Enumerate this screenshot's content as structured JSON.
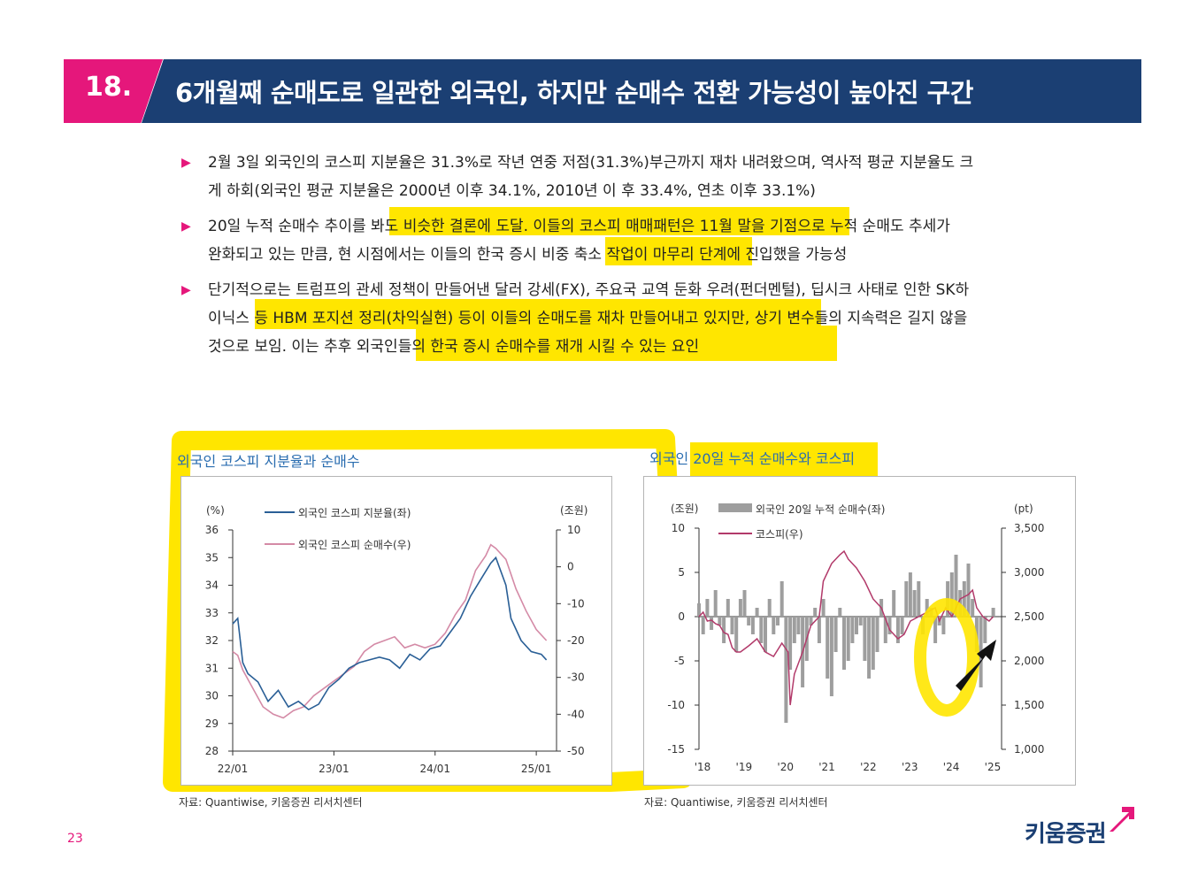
{
  "header": {
    "number": "18.",
    "title": "6개월째 순매도로 일관한 외국인, 하지만 순매수 전환 가능성이 높아진 구간"
  },
  "bullets": [
    {
      "line1": "2월 3일 외국인의 코스피 지분율은 31.3%로 작년 연중 저점(31.3%)부근까지 재차 내려왔으며, 역사적 평균 지분율도 크",
      "line2": "게 하회(외국인 평균 지분율은 2000년 이후 34.1%, 2010년 이 후 33.4%, 연초 이후 33.1%)"
    },
    {
      "line1": "20일 누적 순매수 추이를 봐도 비슷한 결론에 도달. 이들의 코스피 매매패턴은 11월 말을 기점으로 누적 순매도 추세가",
      "line2": "완화되고 있는 만큼, 현 시점에서는 이들의 한국 증시 비중 축소 작업이 마무리 단계에 진입했을 가능성"
    },
    {
      "line1": "단기적으로는 트럼프의 관세 정책이 만들어낸 달러 강세(FX), 주요국 교역 둔화 우려(펀더멘털), 딥시크 사태로 인한 SK하",
      "line2": "이닉스 등 HBM 포지션 정리(차익실현) 등이 이들의 순매도를 재차 만들어내고 있지만, 상기 변수들의 지속력은 길지 않을",
      "line3": "것으로 보임. 이는 추후 외국인들의 한국 증시 순매수를 재개 시킬 수 있는 요인"
    }
  ],
  "page_number": "23",
  "logo_text": "키움증권",
  "colors": {
    "accent": "#e5177b",
    "navy": "#1b3f73",
    "highlight": "#ffe600",
    "series_blue": "#2a5f96",
    "series_pink": "#d48aa6",
    "bar_gray": "#9e9e9e",
    "kospi_red": "#b23a6a"
  },
  "chart_data": [
    {
      "type": "line",
      "title": "외국인 코스피 지분율과 순매수",
      "source": "자료: Quantiwise, 키움증권 리서치센터",
      "left_unit": "(%)",
      "right_unit": "(조원)",
      "left_ticks": [
        "28",
        "29",
        "30",
        "31",
        "32",
        "33",
        "34",
        "35",
        "36"
      ],
      "right_ticks": [
        "-50",
        "-40",
        "-30",
        "-20",
        "-10",
        "0",
        "10"
      ],
      "x_ticks": [
        "22/01",
        "23/01",
        "24/01",
        "25/01"
      ],
      "ylim_left": [
        28,
        36
      ],
      "ylim_right": [
        -50,
        10
      ],
      "series": [
        {
          "name": "외국인 코스피 지분율(좌)",
          "axis": "left",
          "x": [
            2022.0,
            2022.05,
            2022.1,
            2022.15,
            2022.25,
            2022.35,
            2022.45,
            2022.55,
            2022.65,
            2022.75,
            2022.85,
            2022.95,
            2023.05,
            2023.15,
            2023.25,
            2023.35,
            2023.45,
            2023.55,
            2023.65,
            2023.75,
            2023.85,
            2023.95,
            2024.05,
            2024.15,
            2024.25,
            2024.35,
            2024.45,
            2024.55,
            2024.6,
            2024.7,
            2024.75,
            2024.85,
            2024.95,
            2025.05,
            2025.1
          ],
          "values": [
            32.6,
            32.8,
            31.2,
            30.8,
            30.5,
            29.8,
            30.2,
            29.6,
            29.8,
            29.5,
            29.7,
            30.3,
            30.6,
            31.0,
            31.2,
            31.3,
            31.4,
            31.3,
            31.0,
            31.5,
            31.3,
            31.7,
            31.8,
            32.3,
            32.8,
            33.6,
            34.2,
            34.8,
            35.0,
            34.0,
            32.8,
            32.0,
            31.6,
            31.5,
            31.3
          ]
        },
        {
          "name": "외국인 코스피 순매수(우)",
          "axis": "right",
          "x": [
            2022.0,
            2022.05,
            2022.1,
            2022.2,
            2022.3,
            2022.4,
            2022.5,
            2022.6,
            2022.7,
            2022.8,
            2022.9,
            2023.0,
            2023.1,
            2023.2,
            2023.3,
            2023.4,
            2023.5,
            2023.6,
            2023.7,
            2023.8,
            2023.9,
            2024.0,
            2024.1,
            2024.2,
            2024.3,
            2024.4,
            2024.5,
            2024.55,
            2024.6,
            2024.7,
            2024.8,
            2024.9,
            2025.0,
            2025.1
          ],
          "values": [
            -23,
            -24,
            -28,
            -33,
            -38,
            -40,
            -41,
            -39,
            -38,
            -35,
            -33,
            -31,
            -29,
            -27,
            -23,
            -21,
            -20,
            -19,
            -22,
            -21,
            -22,
            -21,
            -18,
            -13,
            -9,
            -1,
            3,
            6,
            5,
            2,
            -6,
            -12,
            -17,
            -20
          ]
        }
      ]
    },
    {
      "type": "bar",
      "title": "외국인 20일 누적 순매수와 코스피",
      "source": "자료: Quantiwise, 키움증권 리서치센터",
      "left_unit": "(조원)",
      "right_unit": "(pt)",
      "left_ticks": [
        "-15",
        "-10",
        "-5",
        "0",
        "5",
        "10"
      ],
      "right_ticks": [
        "1,000",
        "1,500",
        "2,000",
        "2,500",
        "3,000",
        "3,500"
      ],
      "x_ticks": [
        "'18",
        "'19",
        "'20",
        "'21",
        "'22",
        "'23",
        "'24",
        "'25"
      ],
      "ylim_left": [
        -15,
        10
      ],
      "ylim_right": [
        1000,
        3500
      ],
      "series": [
        {
          "name": "외국인 20일 누적 순매수(좌)",
          "axis": "left",
          "style": "bar",
          "x": [
            2018.0,
            2018.1,
            2018.2,
            2018.3,
            2018.4,
            2018.5,
            2018.6,
            2018.7,
            2018.8,
            2018.9,
            2019.0,
            2019.1,
            2019.2,
            2019.3,
            2019.4,
            2019.5,
            2019.6,
            2019.7,
            2019.8,
            2019.9,
            2020.0,
            2020.1,
            2020.2,
            2020.3,
            2020.4,
            2020.5,
            2020.6,
            2020.7,
            2020.8,
            2020.9,
            2021.0,
            2021.1,
            2021.2,
            2021.3,
            2021.4,
            2021.5,
            2021.6,
            2021.7,
            2021.8,
            2021.9,
            2022.0,
            2022.1,
            2022.2,
            2022.3,
            2022.4,
            2022.5,
            2022.6,
            2022.7,
            2022.8,
            2022.9,
            2023.0,
            2023.1,
            2023.2,
            2023.3,
            2023.4,
            2023.5,
            2023.6,
            2023.7,
            2023.8,
            2023.9,
            2024.0,
            2024.1,
            2024.2,
            2024.3,
            2024.4,
            2024.5,
            2024.6,
            2024.7,
            2024.8,
            2024.9,
            2025.0,
            2025.1
          ],
          "values": [
            1.5,
            -2,
            2,
            -1.5,
            3,
            -1,
            -3,
            2,
            -2,
            -4,
            2,
            3,
            -1,
            -2,
            1,
            -3,
            -4,
            2,
            -2,
            -1,
            4,
            -12,
            -6,
            -3,
            -2,
            -8,
            -5,
            -1,
            1,
            -3,
            2,
            -7,
            -9,
            -4,
            1,
            -6,
            -5,
            -3,
            -2,
            -1,
            -5,
            -7,
            -6,
            -4,
            2,
            -3,
            -2,
            3,
            -3,
            -2,
            4,
            5,
            3,
            4,
            -2,
            2,
            1,
            -3,
            -1,
            -2,
            4,
            5,
            7,
            3,
            4,
            6,
            2,
            -4,
            -8,
            -3,
            0,
            1
          ]
        },
        {
          "name": "코스피(우)",
          "axis": "right",
          "style": "line",
          "x": [
            2018.0,
            2018.1,
            2018.2,
            2018.3,
            2018.4,
            2018.5,
            2018.6,
            2018.7,
            2018.8,
            2018.9,
            2019.0,
            2019.2,
            2019.4,
            2019.6,
            2019.8,
            2020.0,
            2020.15,
            2020.2,
            2020.3,
            2020.5,
            2020.7,
            2020.9,
            2021.0,
            2021.2,
            2021.4,
            2021.5,
            2021.6,
            2021.8,
            2022.0,
            2022.2,
            2022.4,
            2022.6,
            2022.8,
            2022.95,
            2023.1,
            2023.3,
            2023.5,
            2023.7,
            2023.8,
            2023.95,
            2024.1,
            2024.3,
            2024.5,
            2024.6,
            2024.7,
            2024.85,
            2025.0,
            2025.1
          ],
          "values": [
            2500,
            2550,
            2450,
            2460,
            2420,
            2400,
            2320,
            2300,
            2150,
            2100,
            2100,
            2170,
            2250,
            2100,
            2050,
            2200,
            2100,
            1500,
            1850,
            2100,
            2400,
            2500,
            2900,
            3100,
            3200,
            3240,
            3150,
            3050,
            2900,
            2700,
            2600,
            2350,
            2250,
            2300,
            2450,
            2500,
            2550,
            2600,
            2450,
            2600,
            2500,
            2700,
            2750,
            2800,
            2600,
            2500,
            2450,
            2500
          ]
        }
      ]
    }
  ]
}
